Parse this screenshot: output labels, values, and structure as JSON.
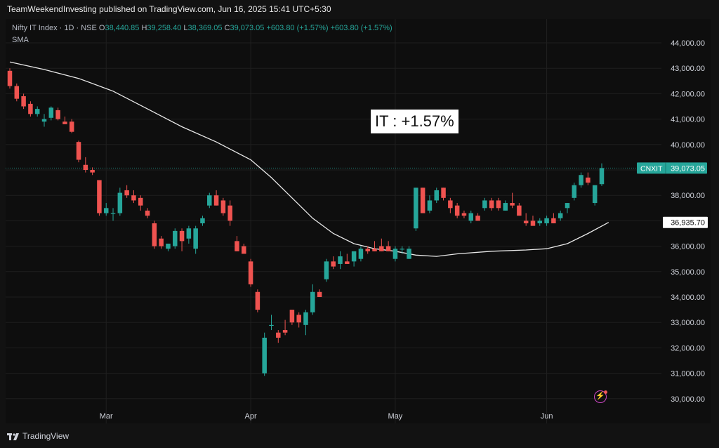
{
  "header": {
    "text": "TeamWeekendInvesting published on TradingView.com, Jun 16, 2025 15:41 UTC+5:30"
  },
  "legend": {
    "symbol": "Nifty IT Index · 1D · NSE",
    "o_label": "O",
    "o_value": "38,440.85",
    "h_label": "H",
    "h_value": "39,258.40",
    "l_label": "L",
    "l_value": "38,369.05",
    "c_label": "C",
    "c_value": "39,073.05",
    "change1": "+603.80 (+1.57%)",
    "change2": "+603.80 (+1.57%)",
    "indicator": "SMA"
  },
  "annotation": "IT : +1.57%",
  "footer": {
    "brand": "TradingView"
  },
  "colors": {
    "up": "#26a69a",
    "down": "#ef5350",
    "sma": "#e8e8e8",
    "background": "#0e0e0e"
  },
  "chart_data": {
    "type": "candlestick",
    "x_tick_labels": [
      {
        "label": "Mar",
        "index": 14
      },
      {
        "label": "Apr",
        "index": 35
      },
      {
        "label": "May",
        "index": 56
      },
      {
        "label": "Jun",
        "index": 78
      }
    ],
    "y_tick_labels": [
      "44,000.00",
      "43,000.00",
      "42,000.00",
      "41,000.00",
      "40,000.00",
      "39,000.00",
      "38,000.00",
      "37,000.00",
      "36,000.00",
      "35,000.00",
      "34,000.00",
      "33,000.00",
      "32,000.00",
      "31,000.00",
      "30,000.00"
    ],
    "y_ticks": [
      44000,
      43000,
      42000,
      41000,
      40000,
      39000,
      38000,
      37000,
      36000,
      35000,
      34000,
      33000,
      32000,
      31000,
      30000
    ],
    "ylim": [
      29600,
      44600
    ],
    "x_count": 93,
    "last_price": 39073.05,
    "last_price_label": "39,073.05",
    "symbol_tag": "CNXIT",
    "sma_value": 36935.7,
    "sma_value_label": "36,935.70",
    "candles": [
      {
        "i": 0,
        "o": 42900,
        "h": 43000,
        "l": 42200,
        "c": 42300
      },
      {
        "i": 1,
        "o": 42300,
        "h": 42400,
        "l": 41700,
        "c": 41800
      },
      {
        "i": 2,
        "o": 41900,
        "h": 42000,
        "l": 41400,
        "c": 41500
      },
      {
        "i": 3,
        "o": 41600,
        "h": 41700,
        "l": 41100,
        "c": 41200
      },
      {
        "i": 4,
        "o": 41200,
        "h": 41500,
        "l": 41100,
        "c": 41400
      },
      {
        "i": 5,
        "o": 40900,
        "h": 41200,
        "l": 40700,
        "c": 41000
      },
      {
        "i": 6,
        "o": 41050,
        "h": 41500,
        "l": 40950,
        "c": 41450
      },
      {
        "i": 7,
        "o": 41350,
        "h": 41450,
        "l": 40950,
        "c": 41000
      },
      {
        "i": 8,
        "o": 40900,
        "h": 41100,
        "l": 40800,
        "c": 40800
      },
      {
        "i": 9,
        "o": 40900,
        "h": 41000,
        "l": 40450,
        "c": 40500
      },
      {
        "i": 10,
        "o": 40100,
        "h": 40150,
        "l": 39300,
        "c": 39400
      },
      {
        "i": 11,
        "o": 39200,
        "h": 39500,
        "l": 38900,
        "c": 39000
      },
      {
        "i": 12,
        "o": 39000,
        "h": 39100,
        "l": 38800,
        "c": 38900
      },
      {
        "i": 13,
        "o": 38600,
        "h": 38600,
        "l": 37200,
        "c": 37300
      },
      {
        "i": 14,
        "o": 37300,
        "h": 37700,
        "l": 37200,
        "c": 37500
      },
      {
        "i": 15,
        "o": 37300,
        "h": 37500,
        "l": 37000,
        "c": 37300
      },
      {
        "i": 16,
        "o": 37300,
        "h": 38300,
        "l": 37200,
        "c": 38100
      },
      {
        "i": 17,
        "o": 38200,
        "h": 38400,
        "l": 37900,
        "c": 38000
      },
      {
        "i": 18,
        "o": 38000,
        "h": 38200,
        "l": 37700,
        "c": 37800
      },
      {
        "i": 19,
        "o": 37900,
        "h": 38000,
        "l": 37400,
        "c": 37600
      },
      {
        "i": 20,
        "o": 37400,
        "h": 37500,
        "l": 37100,
        "c": 37200
      },
      {
        "i": 21,
        "o": 36900,
        "h": 37000,
        "l": 35900,
        "c": 36000
      },
      {
        "i": 22,
        "o": 36300,
        "h": 36400,
        "l": 35900,
        "c": 36000
      },
      {
        "i": 23,
        "o": 35900,
        "h": 36100,
        "l": 35800,
        "c": 36100
      },
      {
        "i": 24,
        "o": 36000,
        "h": 36700,
        "l": 35900,
        "c": 36600
      },
      {
        "i": 25,
        "o": 36600,
        "h": 36700,
        "l": 35800,
        "c": 36200
      },
      {
        "i": 26,
        "o": 36300,
        "h": 36800,
        "l": 36100,
        "c": 36700
      },
      {
        "i": 27,
        "o": 35900,
        "h": 36800,
        "l": 35700,
        "c": 36700
      },
      {
        "i": 28,
        "o": 36900,
        "h": 37200,
        "l": 36800,
        "c": 37100
      },
      {
        "i": 29,
        "o": 37600,
        "h": 38100,
        "l": 37500,
        "c": 38000
      },
      {
        "i": 30,
        "o": 38000,
        "h": 38200,
        "l": 37600,
        "c": 37600
      },
      {
        "i": 31,
        "o": 37800,
        "h": 37900,
        "l": 37200,
        "c": 37300
      },
      {
        "i": 32,
        "o": 37600,
        "h": 37800,
        "l": 36800,
        "c": 37000
      },
      {
        "i": 33,
        "o": 36200,
        "h": 36400,
        "l": 35800,
        "c": 35800
      },
      {
        "i": 34,
        "o": 36000,
        "h": 36100,
        "l": 35800,
        "c": 35700
      },
      {
        "i": 35,
        "o": 35400,
        "h": 35500,
        "l": 34400,
        "c": 34500
      },
      {
        "i": 36,
        "o": 34200,
        "h": 34300,
        "l": 33400,
        "c": 33500
      },
      {
        "i": 37,
        "o": 31000,
        "h": 32600,
        "l": 30900,
        "c": 32400
      },
      {
        "i": 38,
        "o": 32900,
        "h": 33300,
        "l": 32700,
        "c": 32900
      },
      {
        "i": 39,
        "o": 32600,
        "h": 32700,
        "l": 32200,
        "c": 32400
      },
      {
        "i": 40,
        "o": 32700,
        "h": 33100,
        "l": 32500,
        "c": 32600
      },
      {
        "i": 41,
        "o": 33500,
        "h": 33500,
        "l": 32900,
        "c": 33000
      },
      {
        "i": 42,
        "o": 33300,
        "h": 33400,
        "l": 32800,
        "c": 33000
      },
      {
        "i": 43,
        "o": 32900,
        "h": 33500,
        "l": 32500,
        "c": 33400
      },
      {
        "i": 44,
        "o": 33400,
        "h": 34500,
        "l": 33300,
        "c": 34200
      },
      {
        "i": 45,
        "o": 34200,
        "h": 34300,
        "l": 34000,
        "c": 34000
      },
      {
        "i": 46,
        "o": 34700,
        "h": 35500,
        "l": 34600,
        "c": 35400
      },
      {
        "i": 47,
        "o": 35400,
        "h": 35600,
        "l": 35100,
        "c": 35200
      },
      {
        "i": 48,
        "o": 35300,
        "h": 35800,
        "l": 35100,
        "c": 35600
      },
      {
        "i": 49,
        "o": 35400,
        "h": 35700,
        "l": 35300,
        "c": 35300
      },
      {
        "i": 50,
        "o": 35400,
        "h": 35800,
        "l": 35200,
        "c": 35800
      },
      {
        "i": 51,
        "o": 35500,
        "h": 36000,
        "l": 35400,
        "c": 35900
      },
      {
        "i": 52,
        "o": 35900,
        "h": 36000,
        "l": 35700,
        "c": 35800
      },
      {
        "i": 53,
        "o": 35900,
        "h": 36200,
        "l": 35800,
        "c": 35800
      },
      {
        "i": 54,
        "o": 36000,
        "h": 36300,
        "l": 35800,
        "c": 35800
      },
      {
        "i": 55,
        "o": 36000,
        "h": 36200,
        "l": 35800,
        "c": 35800
      },
      {
        "i": 56,
        "o": 35500,
        "h": 36000,
        "l": 35400,
        "c": 35900
      },
      {
        "i": 57,
        "o": 35900,
        "h": 36000,
        "l": 35700,
        "c": 35900
      },
      {
        "i": 58,
        "o": 35500,
        "h": 36000,
        "l": 35500,
        "c": 35900
      },
      {
        "i": 59,
        "o": 36700,
        "h": 38300,
        "l": 36600,
        "c": 38300
      },
      {
        "i": 60,
        "o": 38300,
        "h": 38300,
        "l": 37300,
        "c": 37300
      },
      {
        "i": 61,
        "o": 37400,
        "h": 38000,
        "l": 37300,
        "c": 37800
      },
      {
        "i": 62,
        "o": 37800,
        "h": 38300,
        "l": 37700,
        "c": 38200
      },
      {
        "i": 63,
        "o": 38300,
        "h": 38300,
        "l": 37800,
        "c": 37900
      },
      {
        "i": 64,
        "o": 37800,
        "h": 37900,
        "l": 37300,
        "c": 37500
      },
      {
        "i": 65,
        "o": 37600,
        "h": 37700,
        "l": 37100,
        "c": 37200
      },
      {
        "i": 66,
        "o": 37300,
        "h": 37400,
        "l": 37100,
        "c": 37200
      },
      {
        "i": 67,
        "o": 37000,
        "h": 37400,
        "l": 36900,
        "c": 37300
      },
      {
        "i": 68,
        "o": 37200,
        "h": 37300,
        "l": 37000,
        "c": 37000
      },
      {
        "i": 69,
        "o": 37500,
        "h": 37900,
        "l": 37400,
        "c": 37800
      },
      {
        "i": 70,
        "o": 37800,
        "h": 37900,
        "l": 37400,
        "c": 37500
      },
      {
        "i": 71,
        "o": 37800,
        "h": 37900,
        "l": 37400,
        "c": 37500
      },
      {
        "i": 72,
        "o": 37400,
        "h": 37800,
        "l": 37400,
        "c": 37700
      },
      {
        "i": 73,
        "o": 37700,
        "h": 38100,
        "l": 37500,
        "c": 37600
      },
      {
        "i": 74,
        "o": 37600,
        "h": 37700,
        "l": 37200,
        "c": 37200
      },
      {
        "i": 75,
        "o": 37000,
        "h": 37300,
        "l": 36800,
        "c": 36900
      },
      {
        "i": 76,
        "o": 37000,
        "h": 37200,
        "l": 36800,
        "c": 36800
      },
      {
        "i": 77,
        "o": 36900,
        "h": 37100,
        "l": 36800,
        "c": 37000
      },
      {
        "i": 78,
        "o": 36900,
        "h": 37200,
        "l": 36800,
        "c": 37100
      },
      {
        "i": 79,
        "o": 37100,
        "h": 37300,
        "l": 36900,
        "c": 36900
      },
      {
        "i": 80,
        "o": 37100,
        "h": 37400,
        "l": 37000,
        "c": 37300
      },
      {
        "i": 81,
        "o": 37500,
        "h": 37700,
        "l": 37300,
        "c": 37700
      },
      {
        "i": 82,
        "o": 37900,
        "h": 38500,
        "l": 37800,
        "c": 38400
      },
      {
        "i": 83,
        "o": 38400,
        "h": 38900,
        "l": 38300,
        "c": 38800
      },
      {
        "i": 84,
        "o": 38700,
        "h": 38900,
        "l": 38400,
        "c": 38500
      },
      {
        "i": 85,
        "o": 37700,
        "h": 38400,
        "l": 37600,
        "c": 38400
      },
      {
        "i": 86,
        "o": 38440.85,
        "h": 39258.4,
        "l": 38369.05,
        "c": 39073.05
      }
    ],
    "sma": [
      {
        "i": 0,
        "v": 43250
      },
      {
        "i": 5,
        "v": 42950
      },
      {
        "i": 10,
        "v": 42600
      },
      {
        "i": 15,
        "v": 42100
      },
      {
        "i": 20,
        "v": 41400
      },
      {
        "i": 25,
        "v": 40700
      },
      {
        "i": 30,
        "v": 40100
      },
      {
        "i": 35,
        "v": 39400
      },
      {
        "i": 38,
        "v": 38700
      },
      {
        "i": 41,
        "v": 37900
      },
      {
        "i": 44,
        "v": 37100
      },
      {
        "i": 47,
        "v": 36500
      },
      {
        "i": 50,
        "v": 36100
      },
      {
        "i": 53,
        "v": 35900
      },
      {
        "i": 56,
        "v": 35800
      },
      {
        "i": 59,
        "v": 35650
      },
      {
        "i": 62,
        "v": 35600
      },
      {
        "i": 65,
        "v": 35700
      },
      {
        "i": 70,
        "v": 35800
      },
      {
        "i": 75,
        "v": 35850
      },
      {
        "i": 78,
        "v": 35900
      },
      {
        "i": 81,
        "v": 36100
      },
      {
        "i": 84,
        "v": 36500
      },
      {
        "i": 87,
        "v": 36935.7
      }
    ]
  }
}
